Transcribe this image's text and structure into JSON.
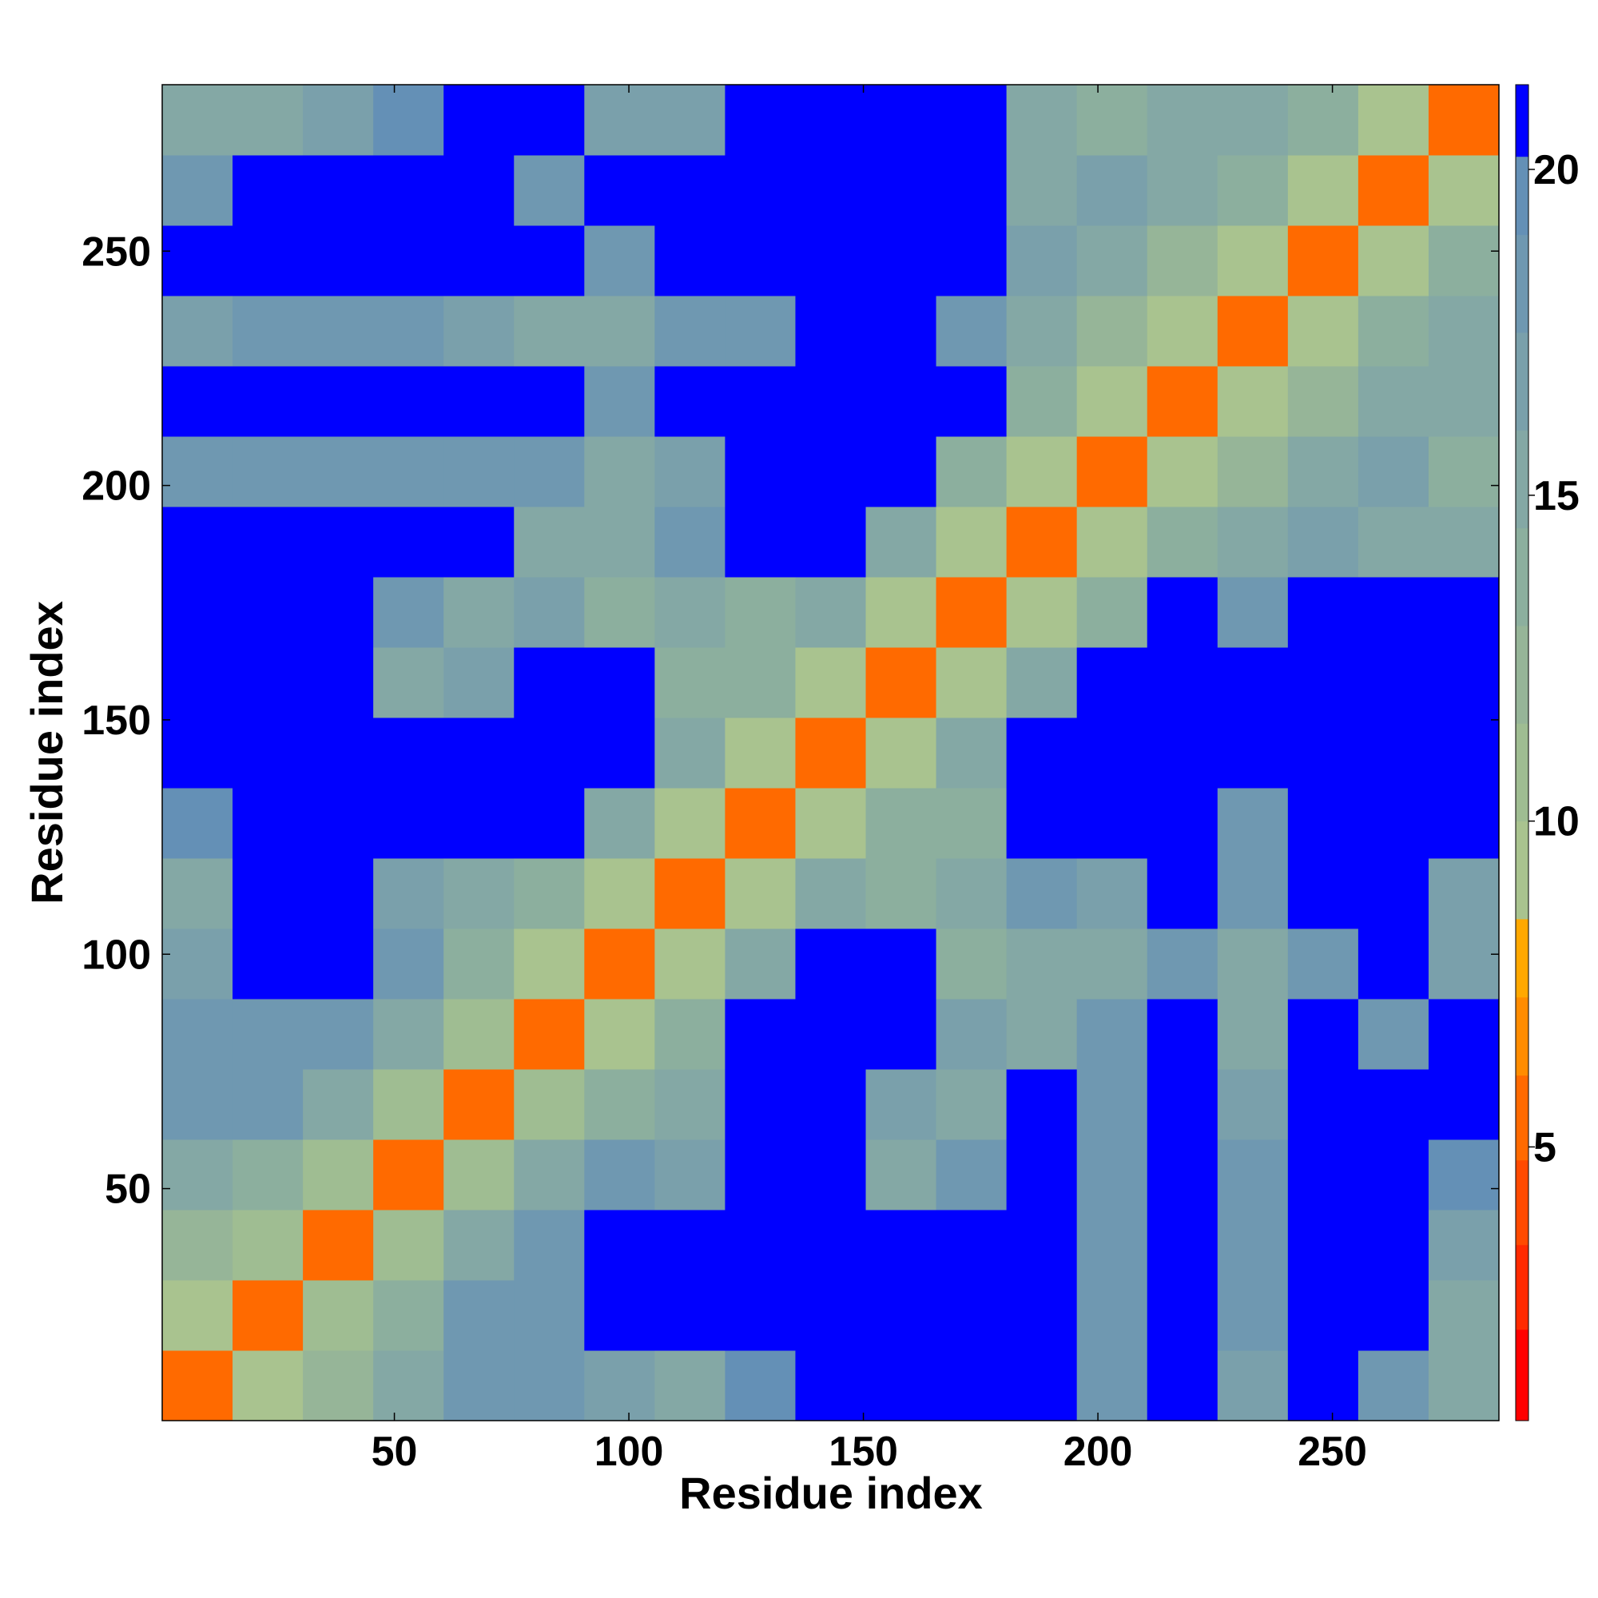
{
  "chart_data": {
    "type": "heatmap",
    "xlabel": "Residue index",
    "ylabel": "Residue index",
    "xlim": [
      0.5,
      285.5
    ],
    "ylim": [
      0.5,
      285.5
    ],
    "xticks": [
      50,
      100,
      150,
      200,
      250
    ],
    "yticks": [
      50,
      100,
      150,
      200,
      250
    ],
    "xbins": [
      0.5,
      15.5,
      30.5,
      45.5,
      60.5,
      75.5,
      90.5,
      105.5,
      120.5,
      135.5,
      150.5,
      165.5,
      180.5,
      195.5,
      210.5,
      225.5,
      240.5,
      255.5,
      270.5,
      285.5
    ],
    "ybins": [
      0.5,
      15.5,
      30.5,
      45.5,
      60.5,
      75.5,
      90.5,
      105.5,
      120.5,
      135.5,
      150.5,
      165.5,
      180.5,
      195.5,
      210.5,
      225.5,
      240.5,
      255.5,
      270.5,
      285.5
    ],
    "z": [
      [
        6,
        10,
        13,
        15,
        19,
        18,
        17,
        16,
        20,
        21,
        21,
        21,
        21,
        18,
        21,
        17,
        21,
        19,
        15
      ],
      [
        10,
        6,
        11,
        14,
        19,
        19,
        21,
        21,
        21,
        21,
        21,
        21,
        21,
        19,
        21,
        18,
        21,
        21,
        16
      ],
      [
        13,
        11,
        6,
        11,
        15,
        19,
        21,
        21,
        21,
        21,
        21,
        21,
        21,
        18,
        21,
        19,
        21,
        21,
        17
      ],
      [
        15,
        14,
        11,
        6,
        11,
        15,
        18,
        17,
        21,
        21,
        16,
        18,
        21,
        19,
        21,
        19,
        21,
        21,
        20
      ],
      [
        19,
        19,
        15,
        11,
        6,
        11,
        14,
        15,
        21,
        21,
        17,
        15,
        21,
        19,
        21,
        17,
        21,
        21,
        21
      ],
      [
        18,
        19,
        19,
        15,
        11,
        6,
        10,
        14,
        21,
        21,
        21,
        17,
        15,
        18,
        21,
        16,
        21,
        18,
        21
      ],
      [
        17,
        21,
        21,
        18,
        14,
        10,
        6,
        10,
        16,
        21,
        21,
        14,
        15,
        16,
        18,
        16,
        19,
        21,
        17
      ],
      [
        16,
        21,
        21,
        17,
        15,
        14,
        10,
        6,
        10,
        15,
        14,
        15,
        18,
        17,
        21,
        18,
        21,
        21,
        17
      ],
      [
        20,
        21,
        21,
        21,
        21,
        21,
        16,
        10,
        6,
        10,
        14,
        14,
        21,
        21,
        21,
        18,
        21,
        21,
        21
      ],
      [
        21,
        21,
        21,
        21,
        21,
        21,
        21,
        15,
        10,
        6,
        10,
        15,
        21,
        21,
        21,
        21,
        21,
        21,
        21
      ],
      [
        21,
        21,
        21,
        16,
        17,
        21,
        21,
        14,
        14,
        10,
        6,
        10,
        15,
        21,
        21,
        21,
        21,
        21,
        21
      ],
      [
        21,
        21,
        21,
        18,
        15,
        17,
        14,
        15,
        14,
        15,
        10,
        6,
        10,
        14,
        21,
        18,
        21,
        21,
        21
      ],
      [
        21,
        21,
        21,
        21,
        21,
        15,
        15,
        18,
        21,
        21,
        15,
        10,
        6,
        10,
        14,
        15,
        17,
        16,
        15
      ],
      [
        18,
        19,
        18,
        19,
        19,
        18,
        16,
        17,
        21,
        21,
        21,
        14,
        10,
        6,
        10,
        13,
        16,
        17,
        14
      ],
      [
        21,
        21,
        21,
        21,
        21,
        21,
        18,
        21,
        21,
        21,
        21,
        21,
        14,
        10,
        6,
        10,
        13,
        15,
        15
      ],
      [
        17,
        18,
        19,
        19,
        17,
        16,
        16,
        18,
        18,
        21,
        21,
        18,
        15,
        13,
        10,
        6,
        10,
        14,
        15
      ],
      [
        21,
        21,
        21,
        21,
        21,
        21,
        19,
        21,
        21,
        21,
        21,
        21,
        17,
        16,
        13,
        10,
        6,
        10,
        14
      ],
      [
        19,
        21,
        21,
        21,
        21,
        18,
        21,
        21,
        21,
        21,
        21,
        21,
        16,
        17,
        15,
        14,
        10,
        6,
        10
      ],
      [
        15,
        16,
        17,
        20,
        21,
        21,
        17,
        17,
        21,
        21,
        21,
        21,
        15,
        14,
        15,
        15,
        14,
        10,
        6
      ]
    ],
    "color_bounds": [
      0.8,
      2.2,
      3.5,
      4.8,
      6.1,
      7.3,
      8.5,
      10,
      11.5,
      13,
      14.5,
      16,
      17.5,
      19,
      20.2,
      21.3
    ],
    "colors": [
      "#ff0000",
      "#ff2a00",
      "#ff4a00",
      "#ff6a00",
      "#ff8c00",
      "#ffa800",
      "#a9c38f",
      "#9fbd92",
      "#96b598",
      "#8caf9e",
      "#84a8a5",
      "#7aa0ab",
      "#6f98b1",
      "#6490b6",
      "#0000ff"
    ],
    "colorbar_ticks": [
      5,
      10,
      15,
      20
    ]
  }
}
